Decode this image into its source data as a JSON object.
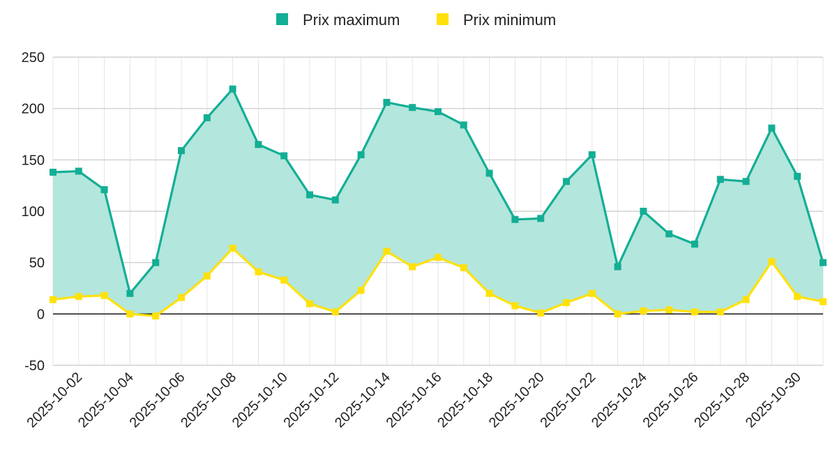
{
  "colors": {
    "max_line": "#13AE95",
    "max_fill": "#B3E6DC",
    "min_line": "#FFE10A",
    "grid": "#C8C8C8",
    "zero": "#222222"
  },
  "chart_data": {
    "type": "area",
    "title": "",
    "xlabel": "",
    "ylabel": "",
    "ylim": [
      -50,
      250
    ],
    "yticks": [
      -50,
      0,
      50,
      100,
      150,
      200,
      250
    ],
    "legend_position": "top-center",
    "grid": true,
    "x": [
      "2025-10-01",
      "2025-10-02",
      "2025-10-03",
      "2025-10-04",
      "2025-10-05",
      "2025-10-06",
      "2025-10-07",
      "2025-10-08",
      "2025-10-09",
      "2025-10-10",
      "2025-10-11",
      "2025-10-12",
      "2025-10-13",
      "2025-10-14",
      "2025-10-15",
      "2025-10-16",
      "2025-10-17",
      "2025-10-18",
      "2025-10-19",
      "2025-10-20",
      "2025-10-21",
      "2025-10-22",
      "2025-10-23",
      "2025-10-24",
      "2025-10-25",
      "2025-10-26",
      "2025-10-27",
      "2025-10-28",
      "2025-10-29",
      "2025-10-30",
      "2025-10-31"
    ],
    "xtick_labels": [
      "2025-10-02",
      "2025-10-04",
      "2025-10-06",
      "2025-10-08",
      "2025-10-10",
      "2025-10-12",
      "2025-10-14",
      "2025-10-16",
      "2025-10-18",
      "2025-10-20",
      "2025-10-22",
      "2025-10-24",
      "2025-10-26",
      "2025-10-28",
      "2025-10-30"
    ],
    "series": [
      {
        "name": "Prix maximum",
        "values": [
          138,
          139,
          121,
          20,
          50,
          159,
          191,
          219,
          165,
          154,
          116,
          111,
          155,
          206,
          201,
          197,
          184,
          137,
          92,
          93,
          129,
          155,
          46,
          100,
          78,
          68,
          131,
          129,
          181,
          134,
          50
        ]
      },
      {
        "name": "Prix minimum",
        "values": [
          14,
          17,
          18,
          0,
          -2,
          16,
          37,
          64,
          41,
          33,
          10,
          2,
          23,
          61,
          46,
          55,
          45,
          20,
          8,
          1,
          11,
          20,
          0,
          3,
          4,
          2,
          2,
          14,
          51,
          17,
          12
        ]
      }
    ]
  }
}
